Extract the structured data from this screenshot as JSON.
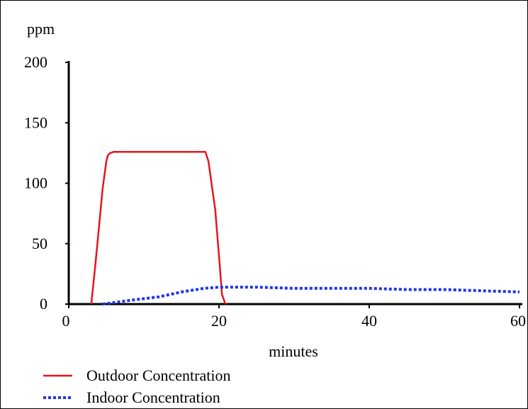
{
  "chart_data": {
    "type": "line",
    "title": "",
    "xlabel": "minutes",
    "ylabel": "ppm",
    "xlim": [
      0,
      60
    ],
    "ylim": [
      0,
      200
    ],
    "xticks": [
      "0",
      "20",
      "40",
      "60"
    ],
    "yticks": [
      "0",
      "50",
      "100",
      "150",
      "200"
    ],
    "grid": false,
    "legend_position": "bottom-left",
    "series": [
      {
        "name": "Outdoor Concentration",
        "color": "#e8141a",
        "style": "solid",
        "x": [
          3.0,
          3.5,
          4.0,
          4.5,
          5.0,
          5.2,
          5.5,
          6.0,
          10.0,
          15.0,
          18.2,
          18.6,
          19.0,
          19.5,
          20.0,
          20.4,
          20.8,
          21.0
        ],
        "y": [
          0,
          30,
          62,
          95,
          118,
          123,
          125,
          126,
          126,
          126,
          126,
          118,
          100,
          78,
          40,
          8,
          1,
          0
        ]
      },
      {
        "name": "Indoor Concentration",
        "color": "#1f36e6",
        "style": "dotted",
        "x": [
          4.5,
          8.0,
          12.0,
          15.0,
          18.0,
          20.0,
          25.0,
          30.0,
          35.0,
          40.0,
          45.0,
          50.0,
          55.0,
          60.0
        ],
        "y": [
          0,
          3,
          6,
          10,
          13,
          14,
          14,
          13,
          13,
          13,
          12,
          12,
          11,
          10
        ]
      }
    ]
  }
}
